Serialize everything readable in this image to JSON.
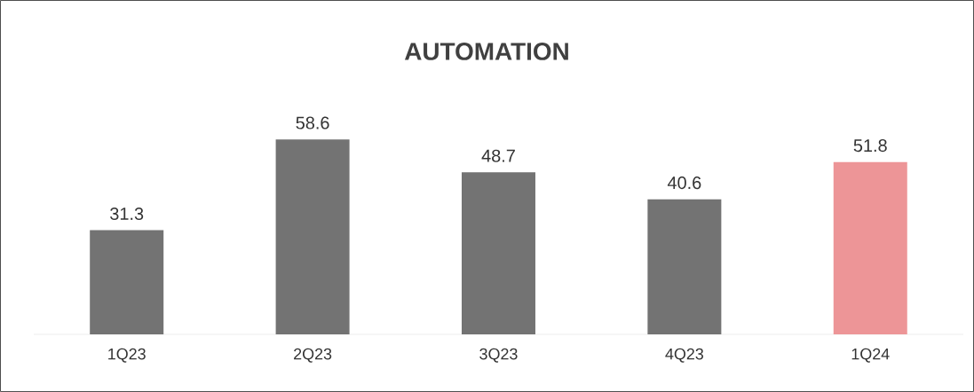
{
  "chart_data": {
    "type": "bar",
    "title": "AUTOMATION",
    "categories": [
      "1Q23",
      "2Q23",
      "3Q23",
      "4Q23",
      "1Q24"
    ],
    "values": [
      31.3,
      58.6,
      48.7,
      40.6,
      51.8
    ],
    "colors": [
      "#737373",
      "#737373",
      "#737373",
      "#737373",
      "#ed9597"
    ],
    "data_labels": true
  }
}
